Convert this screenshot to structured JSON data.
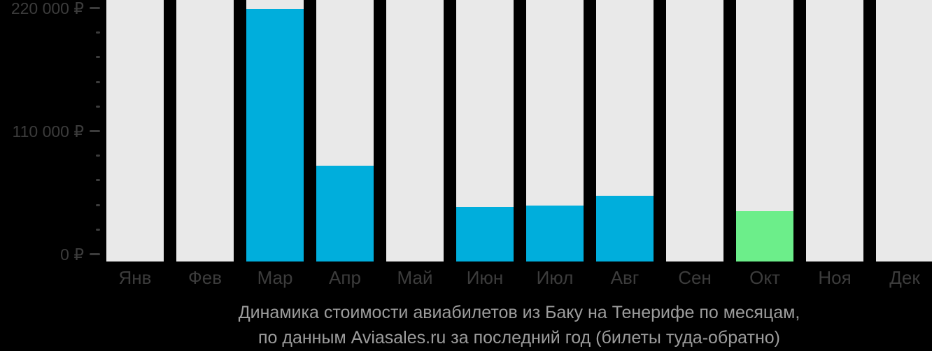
{
  "chart_data": {
    "type": "bar",
    "title_line1": "Динамика стоимости авиабилетов из Баку на Тенерифе по месяцам,",
    "title_line2": "по данным Aviasales.ru за последний год (билеты туда-обратно)",
    "categories": [
      "Янв",
      "Фев",
      "Мар",
      "Апр",
      "Май",
      "Июн",
      "Июл",
      "Авг",
      "Сен",
      "Окт",
      "Ноя",
      "Дек"
    ],
    "values": [
      null,
      null,
      219000,
      79000,
      null,
      42000,
      43000,
      52000,
      null,
      38000,
      null,
      null
    ],
    "highlight_index": 9,
    "highlight_month": "Окт",
    "currency": "₽",
    "ylim": [
      0,
      220000
    ],
    "yticks": [
      {
        "value": 0,
        "label": "0 ₽"
      },
      {
        "value": 110000,
        "label": "110 000 ₽"
      },
      {
        "value": 220000,
        "label": "220 000 ₽"
      }
    ],
    "minor_tick_step": 22000,
    "grid": false,
    "legend": "none",
    "colors": {
      "background": "#000000",
      "bar": "#00aedc",
      "bar_highlight": "#6cee8a",
      "bar_placeholder": "#e9e9e9",
      "axis_text": "#3c3c3c",
      "tick": "#3c3c3c",
      "title_text": "#9c9c9c"
    }
  }
}
